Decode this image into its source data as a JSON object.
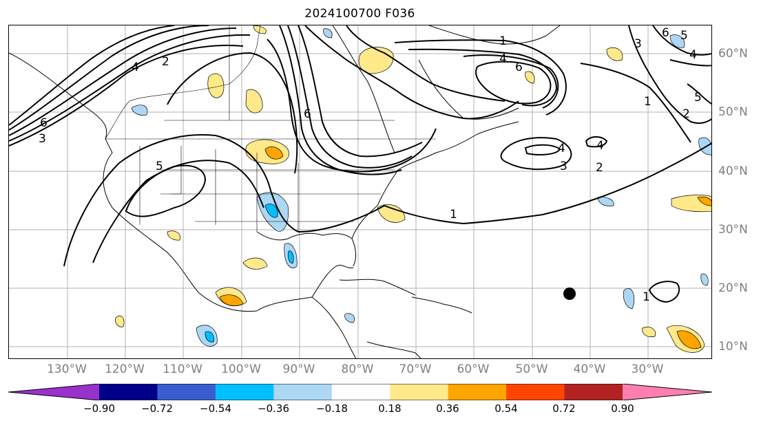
{
  "title": "2024100700 F036",
  "lon_ticks": [
    "130°W",
    "120°W",
    "110°W",
    "100°W",
    "90°W",
    "80°W",
    "70°W",
    "60°W",
    "50°W",
    "40°W",
    "30°W"
  ],
  "lat_ticks": [
    "60°N",
    "50°N",
    "40°N",
    "30°N",
    "20°N",
    "10°N"
  ],
  "contour_labels": [
    "1",
    "4",
    "6",
    "2",
    "4",
    "6",
    "3",
    "6",
    "5",
    "4",
    "4",
    "3",
    "2",
    "1",
    "1",
    "2",
    "5",
    "6",
    "5",
    "4",
    "3",
    "1"
  ],
  "colorbar": {
    "colors": [
      "#9932cc",
      "#00008b",
      "#3a5ecf",
      "#00bfff",
      "#add8f5",
      "#ffffff",
      "#ffe98a",
      "#ffa500",
      "#ff4500",
      "#b22222",
      "#ff80b0"
    ],
    "labels": [
      "−0.90",
      "−0.72",
      "−0.54",
      "−0.36",
      "−0.18",
      "0.18",
      "0.36",
      "0.54",
      "0.72",
      "0.90"
    ]
  },
  "colors": {
    "contour": "#000000",
    "grid": "#b0b0b0",
    "tick_label": "#7f7f7f"
  }
}
